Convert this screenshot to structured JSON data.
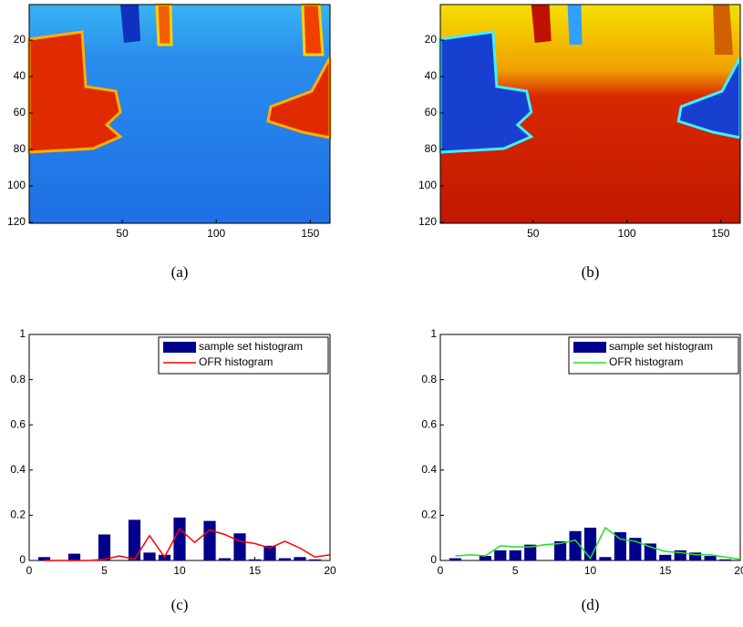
{
  "chart_data": [
    {
      "type": "image",
      "caption": "(a)",
      "xlim": [
        0.5,
        160.5
      ],
      "ylim": [
        0.5,
        120.5
      ],
      "xticks": [
        50,
        100,
        150
      ],
      "yticks": [
        20,
        40,
        60,
        80,
        100,
        120
      ],
      "colormap": "a"
    },
    {
      "type": "image",
      "caption": "(b)",
      "xlim": [
        0.5,
        160.5
      ],
      "ylim": [
        0.5,
        120.5
      ],
      "xticks": [
        50,
        100,
        150
      ],
      "yticks": [
        20,
        40,
        60,
        80,
        100,
        120
      ],
      "colormap": "b"
    },
    {
      "type": "histogram",
      "caption": "(c)",
      "xlim": [
        0,
        20
      ],
      "ylim": [
        0,
        1
      ],
      "xticks": [
        0,
        5,
        10,
        15,
        20
      ],
      "yticks": [
        0,
        0.2,
        0.4,
        0.6,
        0.8,
        1
      ],
      "legend": "northeast",
      "x": [
        1,
        2,
        3,
        4,
        5,
        6,
        7,
        8,
        9,
        10,
        11,
        12,
        13,
        14,
        15,
        16,
        17,
        18,
        19,
        20
      ],
      "series": [
        {
          "name": "sample set histogram",
          "type": "bar",
          "color": "#00008b",
          "values": [
            0.015,
            0,
            0.03,
            0,
            0.115,
            0,
            0.18,
            0.035,
            0.025,
            0.19,
            0,
            0.175,
            0.01,
            0.12,
            0.005,
            0.065,
            0.01,
            0.015,
            0.005,
            0
          ]
        },
        {
          "name": "OFR histogram",
          "type": "line",
          "color": "#ff0000",
          "values": [
            0,
            0,
            0,
            0,
            0.005,
            0.02,
            0.005,
            0.11,
            0.015,
            0.14,
            0.08,
            0.135,
            0.115,
            0.085,
            0.075,
            0.055,
            0.085,
            0.055,
            0.015,
            0.025
          ]
        }
      ]
    },
    {
      "type": "histogram",
      "caption": "(d)",
      "xlim": [
        0,
        20
      ],
      "ylim": [
        0,
        1
      ],
      "xticks": [
        0,
        5,
        10,
        15,
        20
      ],
      "yticks": [
        0,
        0.2,
        0.4,
        0.6,
        0.8,
        1
      ],
      "legend": "northeast",
      "x": [
        1,
        2,
        3,
        4,
        5,
        6,
        7,
        8,
        9,
        10,
        11,
        12,
        13,
        14,
        15,
        16,
        17,
        18,
        19,
        20
      ],
      "series": [
        {
          "name": "sample set histogram",
          "type": "bar",
          "color": "#00008b",
          "values": [
            0.01,
            0,
            0.02,
            0.045,
            0.045,
            0.07,
            0,
            0.085,
            0.13,
            0.145,
            0.015,
            0.125,
            0.1,
            0.075,
            0.025,
            0.045,
            0.035,
            0.02,
            0.005,
            0
          ]
        },
        {
          "name": "OFR histogram",
          "type": "line",
          "color": "#22e022",
          "values": [
            0.02,
            0.025,
            0.02,
            0.065,
            0.06,
            0.06,
            0.07,
            0.075,
            0.09,
            0.01,
            0.145,
            0.095,
            0.085,
            0.06,
            0.04,
            0.035,
            0.025,
            0.025,
            0.015,
            0.005
          ]
        }
      ]
    }
  ]
}
